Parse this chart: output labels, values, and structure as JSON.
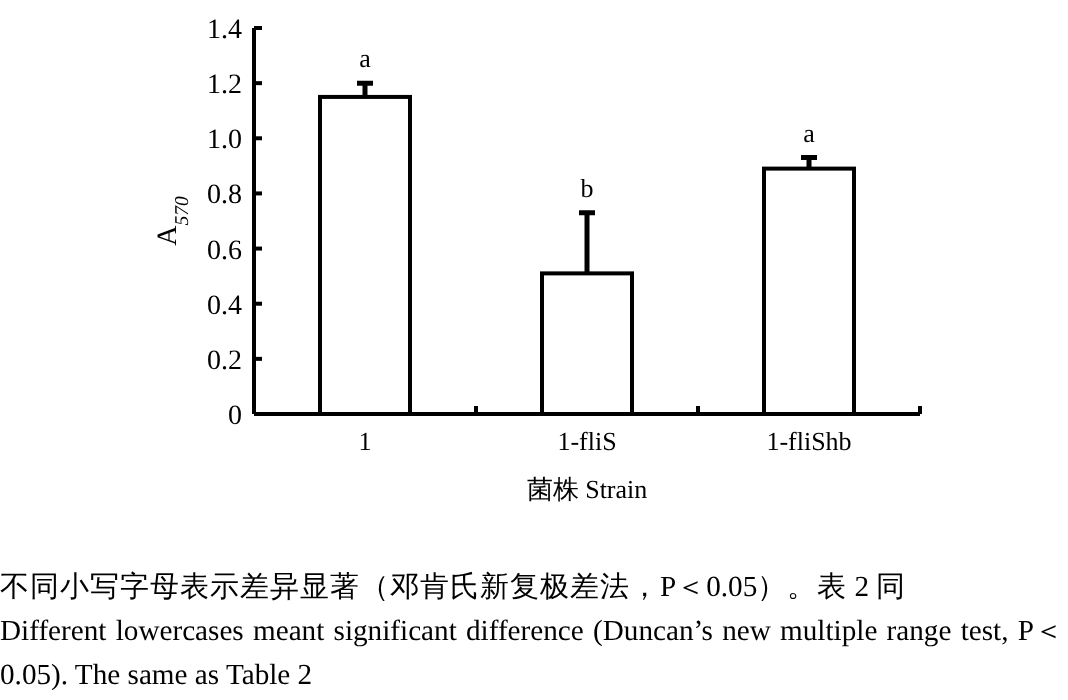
{
  "chart_data": {
    "type": "bar",
    "categories": [
      "1",
      "1-fliS",
      "1-fliShb"
    ],
    "values": [
      1.15,
      0.51,
      0.89
    ],
    "errors": [
      [
        1.15,
        1.2
      ],
      [
        0.51,
        0.73
      ],
      [
        0.89,
        0.93
      ]
    ],
    "color": "#ffffff",
    "ylabel": "A$_{570}$",
    "xlabel": "菌株 Strain",
    "ylim": [
      0,
      1.4
    ],
    "yticks": [
      0,
      0.2,
      0.4,
      0.6,
      0.8,
      {
        "value": 1,
        "label": "1.0"
      },
      1.2,
      1.4
    ],
    "grid": false,
    "annotations": [
      "a",
      "b",
      "a",
      "不同小写字母表示差异显著（邓肯氏新复极差法，P＜0.05）。表 2 同",
      "Different lowercases meant significant difference (Duncan’s new multiple range test, P＜0.05). The same as Table 2"
    ]
  }
}
